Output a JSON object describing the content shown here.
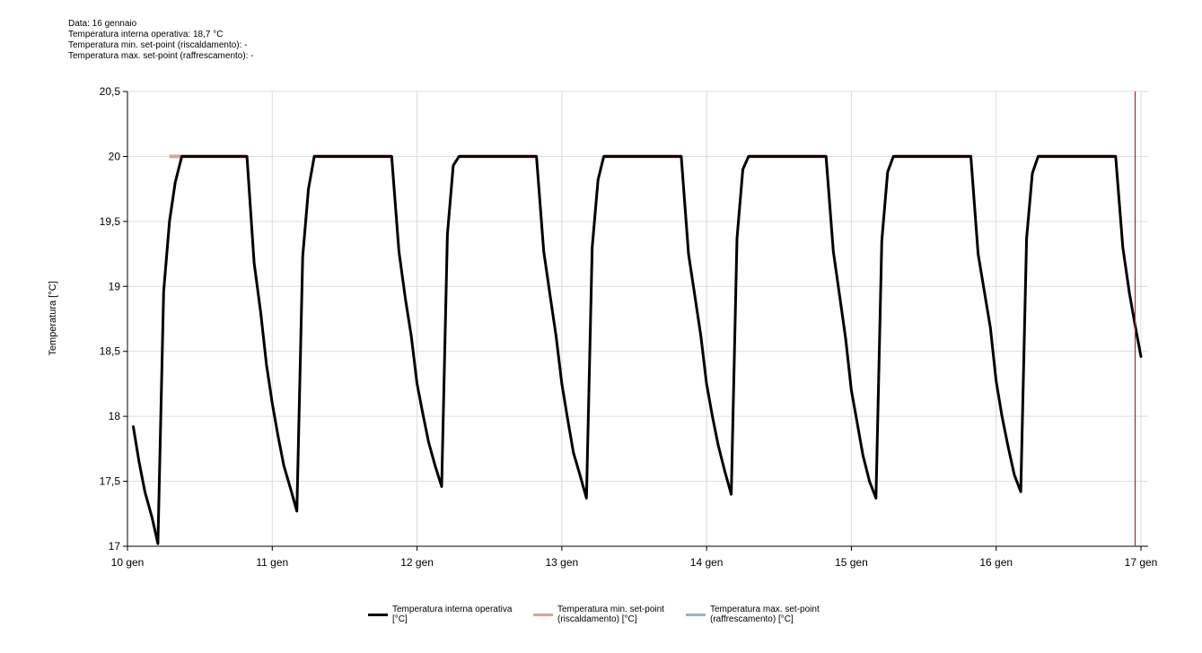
{
  "info": {
    "line1": "Data: 16 gennaio",
    "line2": "Temperatura interna operativa: 18,7 °C",
    "line3": "Temperatura min. set-point (riscaldamento): -",
    "line4": "Temperatura max. set-point (raffrescamento): -"
  },
  "colors": {
    "operative": "#000000",
    "heating": "#d9a3a3",
    "cooling": "#8fb4d9",
    "cursor": "#b22222",
    "grid": "#dcdcdc"
  },
  "legend": [
    {
      "label": "Temperatura interna operativa\n[°C]",
      "color": "#000000"
    },
    {
      "label": "Temperatura min. set-point\n(riscaldamento) [°C]",
      "color": "#d9a3a3"
    },
    {
      "label": "Temperatura max. set-point\n(raffrescamento) [°C]",
      "color": "#8fb4d9"
    }
  ],
  "chart_data": {
    "type": "line",
    "title": "",
    "xlabel": "",
    "ylabel": "Temperatura [°C]",
    "xlim": [
      0,
      7
    ],
    "ylim": [
      17,
      20.5
    ],
    "x_ticks": [
      0,
      1,
      2,
      3,
      4,
      5,
      6,
      7
    ],
    "x_tick_labels": [
      "10 gen",
      "11 gen",
      "12 gen",
      "13 gen",
      "14 gen",
      "15 gen",
      "16 gen",
      "17 gen"
    ],
    "y_ticks": [
      17,
      17.5,
      18,
      18.5,
      19,
      19.5,
      20,
      20.5
    ],
    "y_tick_labels": [
      "17",
      "17,5",
      "18",
      "18,5",
      "19",
      "19,5",
      "20",
      "20,5"
    ],
    "cursor_x": 6.96,
    "series": [
      {
        "name": "Temperatura interna operativa [°C]",
        "x": [
          0.04,
          0.08,
          0.12,
          0.17,
          0.21,
          0.25,
          0.29,
          0.33,
          0.375,
          0.42,
          0.46,
          0.5,
          0.6,
          0.7,
          0.825,
          0.875,
          0.92,
          0.96,
          1.0,
          1.04,
          1.08,
          1.125,
          1.17,
          1.21,
          1.25,
          1.29,
          1.33,
          1.375,
          1.42,
          1.46,
          1.5,
          1.6,
          1.7,
          1.825,
          1.875,
          1.92,
          1.96,
          2.0,
          2.04,
          2.08,
          2.125,
          2.17,
          2.21,
          2.25,
          2.29,
          2.33,
          2.375,
          2.42,
          2.46,
          2.5,
          2.6,
          2.7,
          2.825,
          2.875,
          2.92,
          2.96,
          3.0,
          3.04,
          3.08,
          3.125,
          3.17,
          3.21,
          3.25,
          3.29,
          3.33,
          3.375,
          3.42,
          3.46,
          3.5,
          3.6,
          3.7,
          3.825,
          3.875,
          3.92,
          3.96,
          4.0,
          4.04,
          4.08,
          4.125,
          4.17,
          4.21,
          4.25,
          4.29,
          4.33,
          4.375,
          4.42,
          4.46,
          4.5,
          4.6,
          4.7,
          4.825,
          4.875,
          4.92,
          4.96,
          5.0,
          5.04,
          5.08,
          5.125,
          5.17,
          5.21,
          5.25,
          5.29,
          5.33,
          5.375,
          5.42,
          5.46,
          5.5,
          5.6,
          5.7,
          5.825,
          5.875,
          5.92,
          5.96,
          6.0,
          6.04,
          6.08,
          6.125,
          6.17,
          6.21,
          6.25,
          6.29,
          6.33,
          6.375,
          6.42,
          6.46,
          6.5,
          6.6,
          6.7,
          6.825,
          6.875,
          6.92,
          6.96,
          7.0
        ],
        "values": [
          17.92,
          17.65,
          17.42,
          17.22,
          17.02,
          18.96,
          19.5,
          19.8,
          20.0,
          20.0,
          20.0,
          20.0,
          20.0,
          20.0,
          20.0,
          19.18,
          18.8,
          18.4,
          18.1,
          17.85,
          17.62,
          17.45,
          17.27,
          19.23,
          19.75,
          20.0,
          20.0,
          20.0,
          20.0,
          20.0,
          20.0,
          20.0,
          20.0,
          20.0,
          19.27,
          18.9,
          18.62,
          18.25,
          18.02,
          17.8,
          17.62,
          17.46,
          19.4,
          19.93,
          20.0,
          20.0,
          20.0,
          20.0,
          20.0,
          20.0,
          20.0,
          20.0,
          20.0,
          19.27,
          18.92,
          18.62,
          18.25,
          17.98,
          17.72,
          17.55,
          17.37,
          19.3,
          19.82,
          20.0,
          20.0,
          20.0,
          20.0,
          20.0,
          20.0,
          20.0,
          20.0,
          20.0,
          19.25,
          18.92,
          18.62,
          18.25,
          18.0,
          17.78,
          17.58,
          17.4,
          19.37,
          19.9,
          20.0,
          20.0,
          20.0,
          20.0,
          20.0,
          20.0,
          20.0,
          20.0,
          20.0,
          19.27,
          18.92,
          18.6,
          18.2,
          17.95,
          17.7,
          17.5,
          17.37,
          19.35,
          19.88,
          20.0,
          20.0,
          20.0,
          20.0,
          20.0,
          20.0,
          20.0,
          20.0,
          20.0,
          19.25,
          18.95,
          18.68,
          18.27,
          18.0,
          17.78,
          17.55,
          17.42,
          19.37,
          19.87,
          20.0,
          20.0,
          20.0,
          20.0,
          20.0,
          20.0,
          20.0,
          20.0,
          20.0,
          19.3,
          18.95,
          18.7,
          18.46
        ],
        "color": "#000000",
        "width": 3
      },
      {
        "name": "Temperatura min. set-point (riscaldamento) [°C]",
        "segments": [
          [
            0.29,
            0.825
          ],
          [
            1.29,
            1.825
          ],
          [
            2.29,
            2.825
          ],
          [
            3.29,
            3.825
          ],
          [
            4.29,
            4.825
          ],
          [
            5.29,
            5.825
          ],
          [
            6.29,
            6.825
          ]
        ],
        "value": 20,
        "color": "#d9a3a3",
        "width": 4
      },
      {
        "name": "Temperatura max. set-point (raffrescamento) [°C]",
        "segments": [],
        "value": null,
        "color": "#8fb4d9",
        "width": 3
      }
    ]
  }
}
